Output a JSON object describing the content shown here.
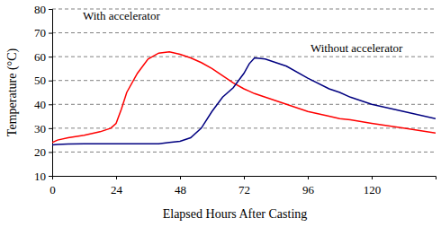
{
  "chart_data": {
    "type": "line",
    "x_label": "Elapsed Hours After Casting",
    "y_label": "Temperature (°C)",
    "x": [
      0,
      2,
      6,
      12,
      18,
      22,
      24,
      26,
      28,
      32,
      36,
      40,
      44,
      48,
      52,
      56,
      60,
      64,
      68,
      72,
      74,
      76,
      80,
      88,
      96,
      104,
      108,
      112,
      120,
      132,
      144
    ],
    "series": [
      {
        "name": "With accelerator",
        "color": "#ff0000",
        "values": [
          24,
          25,
          26,
          27,
          28.5,
          30,
          32,
          38,
          45,
          53,
          59,
          61.5,
          62,
          61,
          59.5,
          57.5,
          55,
          52,
          49,
          46.5,
          45.5,
          44.5,
          43,
          40,
          37,
          35,
          34,
          33.5,
          32,
          30,
          28
        ]
      },
      {
        "name": "Without accelerator",
        "color": "#000080",
        "values": [
          23,
          23.2,
          23.4,
          23.5,
          23.5,
          23.5,
          23.5,
          23.5,
          23.5,
          23.5,
          23.5,
          23.5,
          24,
          24.5,
          26,
          30,
          37,
          43,
          47,
          53,
          57,
          59.5,
          59,
          56,
          51,
          46.5,
          45,
          43,
          40,
          37,
          34
        ]
      }
    ],
    "xlim": [
      0,
      144
    ],
    "xticks": [
      0,
      24,
      48,
      72,
      96,
      120
    ],
    "ylim": [
      10,
      80
    ],
    "yticks": [
      10,
      20,
      30,
      40,
      50,
      60,
      70,
      80
    ],
    "grid": true
  }
}
